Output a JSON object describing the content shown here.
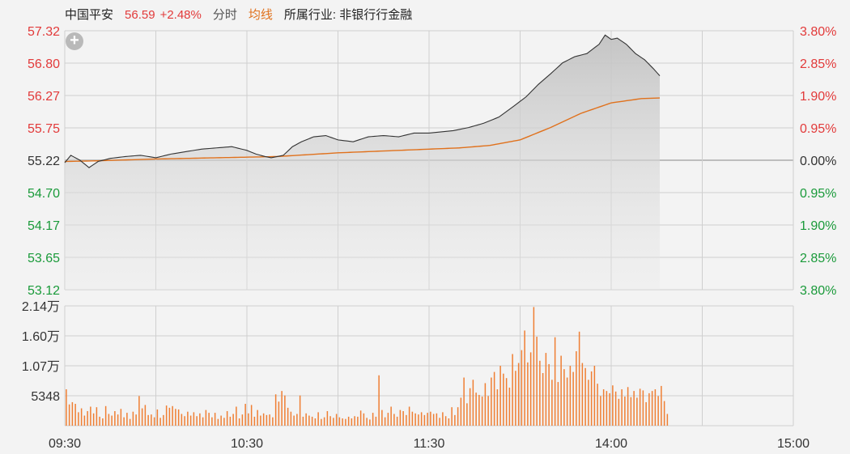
{
  "header": {
    "name": "中国平安",
    "price": "56.59",
    "change_pct": "+2.48%",
    "mode_label": "分时",
    "avg_label": "均线",
    "industry_label": "所属行业: 非银行行金融"
  },
  "colors": {
    "up": "#e23a3a",
    "down": "#1a9a3a",
    "price_line": "#333333",
    "avg_line": "#e0711c",
    "volume_bar": "#ef7e32"
  },
  "chart_data": {
    "type": "line",
    "x_ticks": [
      "09:30",
      "10:30",
      "11:30",
      "14:00",
      "15:00"
    ],
    "price_axis": {
      "ticks": [
        "57.32",
        "56.80",
        "56.27",
        "55.75",
        "55.22",
        "54.70",
        "54.17",
        "53.65",
        "53.12"
      ],
      "ylim": [
        53.12,
        57.32
      ],
      "prev_close": 55.22
    },
    "pct_axis": {
      "ticks": [
        "3.80%",
        "2.85%",
        "1.90%",
        "0.95%",
        "0.00%",
        "0.95%",
        "1.90%",
        "2.85%",
        "3.80%"
      ]
    },
    "volume_axis": {
      "ticks": [
        "2.14万",
        "1.60万",
        "1.07万",
        "5348"
      ],
      "ylim": [
        0,
        21400
      ]
    },
    "price_keypoints": [
      [
        0,
        55.18
      ],
      [
        2,
        55.3
      ],
      [
        5,
        55.22
      ],
      [
        8,
        55.1
      ],
      [
        11,
        55.2
      ],
      [
        15,
        55.25
      ],
      [
        20,
        55.28
      ],
      [
        25,
        55.3
      ],
      [
        30,
        55.26
      ],
      [
        35,
        55.32
      ],
      [
        40,
        55.36
      ],
      [
        45,
        55.4
      ],
      [
        50,
        55.42
      ],
      [
        55,
        55.44
      ],
      [
        60,
        55.38
      ],
      [
        63,
        55.32
      ],
      [
        66,
        55.28
      ],
      [
        68,
        55.26
      ],
      [
        72,
        55.3
      ],
      [
        75,
        55.44
      ],
      [
        78,
        55.52
      ],
      [
        82,
        55.6
      ],
      [
        86,
        55.62
      ],
      [
        90,
        55.55
      ],
      [
        95,
        55.52
      ],
      [
        100,
        55.6
      ],
      [
        105,
        55.62
      ],
      [
        110,
        55.6
      ],
      [
        115,
        55.66
      ],
      [
        120,
        55.66
      ],
      [
        124,
        55.68
      ],
      [
        128,
        55.7
      ],
      [
        133,
        55.75
      ],
      [
        138,
        55.82
      ],
      [
        143,
        55.92
      ],
      [
        148,
        56.1
      ],
      [
        152,
        56.25
      ],
      [
        156,
        56.45
      ],
      [
        160,
        56.62
      ],
      [
        164,
        56.8
      ],
      [
        168,
        56.9
      ],
      [
        172,
        56.95
      ],
      [
        176,
        57.1
      ],
      [
        178,
        57.25
      ],
      [
        180,
        57.18
      ],
      [
        182,
        57.2
      ],
      [
        185,
        57.1
      ],
      [
        188,
        56.95
      ],
      [
        191,
        56.85
      ],
      [
        194,
        56.7
      ],
      [
        196,
        56.59
      ]
    ],
    "avg_keypoints": [
      [
        0,
        55.2
      ],
      [
        10,
        55.21
      ],
      [
        30,
        55.24
      ],
      [
        50,
        55.26
      ],
      [
        70,
        55.28
      ],
      [
        90,
        55.34
      ],
      [
        110,
        55.38
      ],
      [
        130,
        55.42
      ],
      [
        140,
        55.46
      ],
      [
        150,
        55.55
      ],
      [
        160,
        55.75
      ],
      [
        170,
        55.98
      ],
      [
        180,
        56.15
      ],
      [
        190,
        56.22
      ],
      [
        196,
        56.23
      ]
    ],
    "volumes": [
      6500,
      3800,
      4200,
      3900,
      2400,
      3100,
      1800,
      2600,
      3400,
      2200,
      3300,
      1600,
      1300,
      3500,
      2100,
      1800,
      2600,
      2000,
      3000,
      1500,
      2300,
      1200,
      2500,
      2000,
      5300,
      3100,
      3700,
      1900,
      2000,
      1500,
      2900,
      1400,
      1900,
      3600,
      3200,
      3500,
      3000,
      2900,
      2100,
      1700,
      2500,
      1800,
      2400,
      1700,
      2200,
      1500,
      2800,
      2300,
      1500,
      2300,
      1200,
      1800,
      1400,
      2600,
      1600,
      2100,
      3400,
      1300,
      2000,
      3900,
      2200,
      3700,
      1600,
      2800,
      1800,
      2200,
      1900,
      2000,
      1500,
      5600,
      4300,
      6200,
      5400,
      3200,
      2500,
      1800,
      2100,
      5400,
      1600,
      2200,
      1800,
      1600,
      1300,
      2400,
      1200,
      1500,
      2600,
      1700,
      1400,
      2100,
      1500,
      1300,
      1200,
      1600,
      1300,
      1700,
      1600,
      2700,
      2200,
      1400,
      1100,
      2300,
      1600,
      9000,
      2800,
      1500,
      2300,
      3400,
      2100,
      1600,
      2800,
      2600,
      1900,
      3400,
      2500,
      2200,
      2000,
      2400,
      1900,
      2300,
      2500,
      2100,
      2200,
      1400,
      2400,
      1700,
      1300,
      3300,
      1900,
      3300,
      5000,
      8600,
      4000,
      6700,
      8200,
      5900,
      5500,
      5200,
      7600,
      5300,
      8600,
      9600,
      6500,
      10700,
      9300,
      8500,
      6800,
      12800,
      9800,
      11200,
      13500,
      17000,
      11300,
      13100,
      21200,
      15900,
      11600,
      9400,
      13000,
      11000,
      8200,
      15800,
      7800,
      12500,
      10100,
      8600,
      10700,
      9600,
      13300,
      16800,
      11200,
      10300,
      8200,
      9700,
      10700,
      7500,
      5300,
      6500,
      6200,
      5800,
      7200,
      6100,
      4800,
      6500,
      5200,
      6900,
      5100,
      6200,
      5000,
      6600,
      6300,
      4200,
      5800,
      6200,
      6500,
      5300,
      7100,
      4400,
      2100
    ]
  }
}
